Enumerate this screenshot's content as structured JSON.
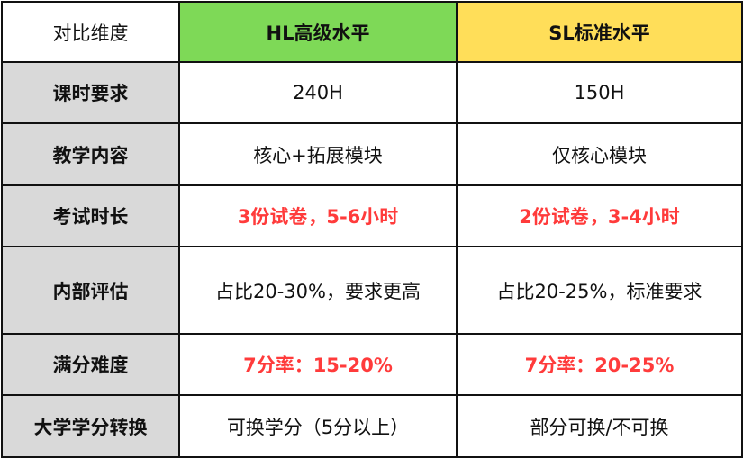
{
  "colors": {
    "hl_header": "#7ED957",
    "sl_header": "#FFDE59",
    "label_bg": "#D9D9D9",
    "highlight_text": "#FF3B3B"
  },
  "header": [
    "对比维度",
    "HL高级水平",
    "SL标准水平"
  ],
  "rows": [
    {
      "label": "课时要求",
      "hl": "240H",
      "sl": "150H",
      "highlight": false
    },
    {
      "label": "教学内容",
      "hl": "核心+拓展模块",
      "sl": "仅核心模块",
      "highlight": false
    },
    {
      "label": "考试时长",
      "hl": "3份试卷，5-6小时",
      "sl": "2份试卷，3-4小时",
      "highlight": true
    },
    {
      "label": "内部评估",
      "hl": "占比20-30%，要求更高",
      "sl": "占比20-25%，标准要求",
      "highlight": false
    },
    {
      "label": "满分难度",
      "hl": "7分率：15-20%",
      "sl": "7分率：20-25%",
      "highlight": true
    },
    {
      "label": "大学学分转换",
      "hl": "可换学分（5分以上）",
      "sl": "部分可换/不可换",
      "highlight": false
    }
  ]
}
